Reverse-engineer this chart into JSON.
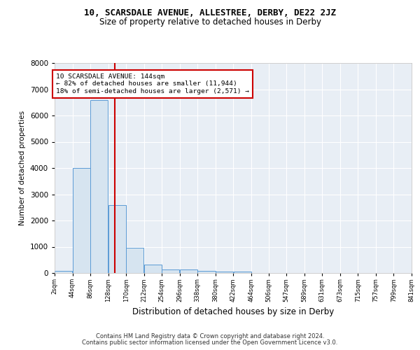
{
  "title1": "10, SCARSDALE AVENUE, ALLESTREE, DERBY, DE22 2JZ",
  "title2": "Size of property relative to detached houses in Derby",
  "xlabel": "Distribution of detached houses by size in Derby",
  "ylabel": "Number of detached properties",
  "footer1": "Contains HM Land Registry data © Crown copyright and database right 2024.",
  "footer2": "Contains public sector information licensed under the Open Government Licence v3.0.",
  "annotation_line1": "10 SCARSDALE AVENUE: 144sqm",
  "annotation_line2": "← 82% of detached houses are smaller (11,944)",
  "annotation_line3": "18% of semi-detached houses are larger (2,571) →",
  "property_size": 144,
  "bar_color": "#d6e4f0",
  "bar_edge_color": "#5b9bd5",
  "red_line_color": "#cc0000",
  "annotation_box_color": "#cc0000",
  "background_color": "#e8eef5",
  "bin_edges": [
    2,
    44,
    86,
    128,
    170,
    212,
    254,
    296,
    338,
    380,
    422,
    464,
    506,
    547,
    589,
    631,
    673,
    715,
    757,
    799,
    841
  ],
  "bin_labels": [
    "2sqm",
    "44sqm",
    "86sqm",
    "128sqm",
    "170sqm",
    "212sqm",
    "254sqm",
    "296sqm",
    "338sqm",
    "380sqm",
    "422sqm",
    "464sqm",
    "506sqm",
    "547sqm",
    "589sqm",
    "631sqm",
    "673sqm",
    "715sqm",
    "757sqm",
    "799sqm",
    "841sqm"
  ],
  "bar_heights": [
    80,
    4000,
    6600,
    2600,
    950,
    320,
    130,
    125,
    80,
    60,
    55,
    0,
    0,
    0,
    0,
    0,
    0,
    0,
    0,
    0
  ],
  "ylim": [
    0,
    8000
  ],
  "yticks": [
    0,
    1000,
    2000,
    3000,
    4000,
    5000,
    6000,
    7000,
    8000
  ]
}
